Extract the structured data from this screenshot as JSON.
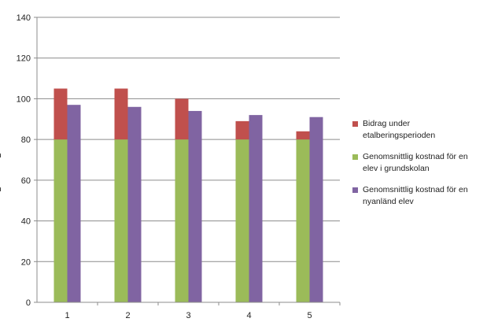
{
  "chart_data": {
    "type": "bar",
    "stacked_series": true,
    "categories": [
      "1",
      "2",
      "3",
      "4",
      "5"
    ],
    "ylim": [
      0,
      140
    ],
    "yticks": [
      0,
      20,
      40,
      60,
      80,
      100,
      120,
      140
    ],
    "grid": true,
    "legend_position": "right",
    "series": [
      {
        "name": "Bidrag under\netalberingsperioden",
        "stack": "a",
        "color": "#c0504d",
        "values": [
          25,
          25,
          20,
          9,
          4
        ]
      },
      {
        "name": "Genomsnittlig kostnad för en\nelev i grundskolan",
        "stack": "a",
        "color": "#9bbb59",
        "values": [
          80,
          80,
          80,
          80,
          80
        ]
      },
      {
        "name": "Genomsnittlig kostnad för en\nnyanländ elev",
        "stack": "b",
        "color": "#8064a2",
        "values": [
          97,
          96,
          94,
          92,
          91
        ]
      }
    ],
    "cut_off_left_labels": [
      "n",
      "n"
    ]
  }
}
